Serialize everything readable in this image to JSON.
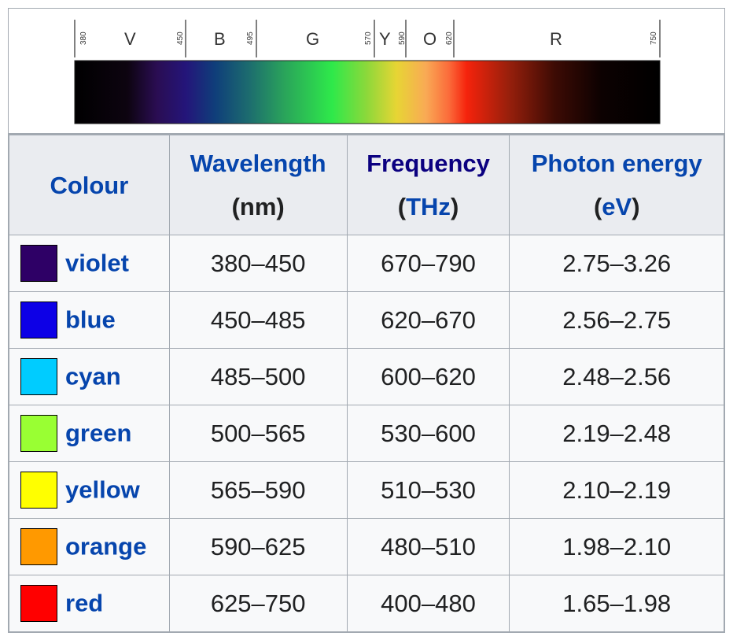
{
  "spectrum": {
    "scale_numbers": [
      "380",
      "450",
      "495",
      "570",
      "590",
      "620",
      "750"
    ],
    "band_letters": [
      "V",
      "B",
      "G",
      "Y",
      "O",
      "R"
    ]
  },
  "table": {
    "headers": [
      {
        "line1": "Colour",
        "line2": ""
      },
      {
        "line1": "Wavelength",
        "line2": "(nm)"
      },
      {
        "line1": "Frequency",
        "line2": "(THz)"
      },
      {
        "line1": "Photon energy",
        "line2": "(eV)"
      }
    ],
    "rows": [
      {
        "colour": "violet",
        "swatch": "#2e0066",
        "wavelength": "380–450",
        "frequency": "670–790",
        "energy": "2.75–3.26"
      },
      {
        "colour": "blue",
        "swatch": "#0d00e6",
        "wavelength": "450–485",
        "frequency": "620–670",
        "energy": "2.56–2.75"
      },
      {
        "colour": "cyan",
        "swatch": "#00ccff",
        "wavelength": "485–500",
        "frequency": "600–620",
        "energy": "2.48–2.56"
      },
      {
        "colour": "green",
        "swatch": "#99ff33",
        "wavelength": "500–565",
        "frequency": "530–600",
        "energy": "2.19–2.48"
      },
      {
        "colour": "yellow",
        "swatch": "#ffff00",
        "wavelength": "565–590",
        "frequency": "510–530",
        "energy": "2.10–2.19"
      },
      {
        "colour": "orange",
        "swatch": "#ff9900",
        "wavelength": "590–625",
        "frequency": "480–510",
        "energy": "1.98–2.10"
      },
      {
        "colour": "red",
        "swatch": "#ff0000",
        "wavelength": "625–750",
        "frequency": "400–480",
        "energy": "1.65–1.98"
      }
    ]
  }
}
